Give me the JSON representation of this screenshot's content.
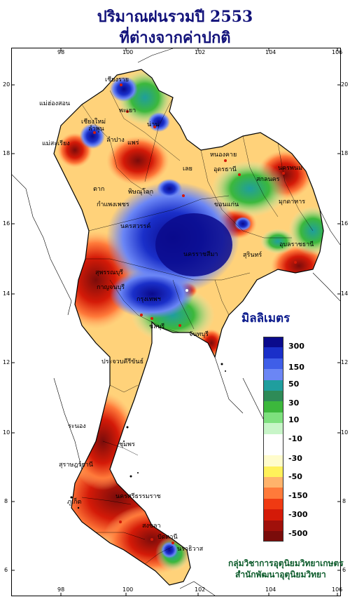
{
  "title": {
    "line1": "ปริมาณฝนรวมปี  2553",
    "line2": "ที่ต่างจากค่าปกติ"
  },
  "axes": {
    "x_ticks": [
      "98",
      "100",
      "102",
      "104",
      "106"
    ],
    "y_ticks": [
      "20",
      "18",
      "16",
      "14",
      "12",
      "10",
      "8",
      "6"
    ]
  },
  "legend": {
    "title": "มิลลิเมตร",
    "labels": [
      "300",
      "150",
      "50",
      "30",
      "10",
      "-10",
      "-30",
      "-50",
      "-150",
      "-300",
      "-500"
    ],
    "colors": [
      "#0a0a8c",
      "#1a2fc9",
      "#3f5ee8",
      "#6b86f5",
      "#1f9e9e",
      "#2e8b57",
      "#3cb83c",
      "#7ee07e",
      "#c8f5c8",
      "#ffffff",
      "#ffffff",
      "#fffccc",
      "#fff15a",
      "#ffb36b",
      "#ff7a3a",
      "#f03a12",
      "#d41a08",
      "#a0100a",
      "#7a0c0a"
    ]
  },
  "credit": {
    "line1": "กลุ่มวิชาการอุตุนิยมวิทยาเกษตร",
    "line2": "สำนักพัฒนาอุตุนิยมวิทยา"
  },
  "cities": [
    {
      "id": "chiangrai",
      "name": "เชียงราย"
    },
    {
      "id": "maehongson",
      "name": "แม่ฮ่องสอน"
    },
    {
      "id": "phayao",
      "name": "พะเยา"
    },
    {
      "id": "chiangmai",
      "name": "เชียงใหม่"
    },
    {
      "id": "lamphun",
      "name": "ลำพูน"
    },
    {
      "id": "nan",
      "name": "น่าน"
    },
    {
      "id": "lampang",
      "name": "ลำปาง"
    },
    {
      "id": "phrae",
      "name": "แพร่"
    },
    {
      "id": "maesariang",
      "name": "แม่สะเรียง"
    },
    {
      "id": "nongkhai",
      "name": "หนองคาย"
    },
    {
      "id": "udonthani",
      "name": "อุดรธานี"
    },
    {
      "id": "nakhonphanom",
      "name": "นครพนม"
    },
    {
      "id": "sakonnakhon",
      "name": "สกลนคร"
    },
    {
      "id": "loei",
      "name": "เลย"
    },
    {
      "id": "tak",
      "name": "ตาก"
    },
    {
      "id": "phitsanulok",
      "name": "พิษณุโลก"
    },
    {
      "id": "kamphaengphet",
      "name": "กำแพงเพชร"
    },
    {
      "id": "khonkaen",
      "name": "ขอนแก่น"
    },
    {
      "id": "mukdahan",
      "name": "มุกดาหาร"
    },
    {
      "id": "nakhonsawan",
      "name": "นครสวรรค์"
    },
    {
      "id": "ubon",
      "name": "อุบลราชธานี"
    },
    {
      "id": "nakhonratchasima",
      "name": "นครราชสีมา"
    },
    {
      "id": "surin",
      "name": "สุรินทร์"
    },
    {
      "id": "suphanburi",
      "name": "สุพรรณบุรี"
    },
    {
      "id": "kanchanaburi",
      "name": "กาญจนบุรี"
    },
    {
      "id": "bangkok",
      "name": "กรุงเทพฯ"
    },
    {
      "id": "chonburi",
      "name": "ชลบุรี"
    },
    {
      "id": "chanthaburi",
      "name": "จันทบุรี"
    },
    {
      "id": "prachuap",
      "name": "ประจวบคีรีขันธ์"
    },
    {
      "id": "ranong",
      "name": "ระนอง"
    },
    {
      "id": "chumphon",
      "name": "ชุมพร"
    },
    {
      "id": "suratthani",
      "name": "สุราษฎร์ธานี"
    },
    {
      "id": "nakhonsi",
      "name": "นครศรีธรรมราช"
    },
    {
      "id": "phuket",
      "name": "ภูเก็ต"
    },
    {
      "id": "songkhla",
      "name": "สงขลา"
    },
    {
      "id": "narathiwat",
      "name": "นราธิวาส"
    },
    {
      "id": "pattani",
      "name": "ปัตตานี"
    }
  ]
}
